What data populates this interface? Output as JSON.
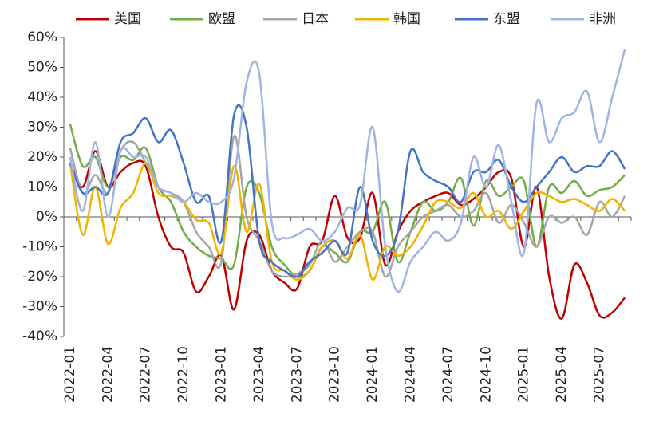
{
  "chart_data": {
    "type": "line",
    "categories": [
      "2022-01",
      null,
      null,
      "2022-04",
      null,
      null,
      "2022-07",
      null,
      null,
      "2022-10",
      null,
      null,
      "2023-01",
      null,
      null,
      "2023-04",
      null,
      null,
      "2023-07",
      null,
      null,
      "2023-10",
      null,
      null,
      "2024-01",
      null,
      null,
      "2024-04",
      null,
      null,
      "2024-07",
      null,
      null,
      "2024-10",
      null,
      null,
      "2025-01",
      null,
      null,
      "2025-04",
      null,
      null,
      "2025-07",
      null,
      null
    ],
    "series": [
      {
        "name": "美国",
        "color": "#c00000",
        "values": [
          18,
          10,
          22,
          10,
          15,
          18,
          17,
          0,
          -10,
          -12,
          -25,
          -20,
          -13,
          -31,
          -8,
          -6,
          -18,
          -22,
          -24,
          -10,
          -8,
          7,
          -7,
          -7,
          8,
          -16,
          -5,
          2,
          5,
          7,
          8,
          4,
          6,
          10,
          15,
          13,
          -10,
          10,
          -20,
          -34,
          -16,
          -22,
          -33,
          -32,
          -27
        ]
      },
      {
        "name": "欧盟",
        "color": "#70ad47",
        "values": [
          31,
          17,
          20,
          10,
          20,
          19,
          23,
          10,
          5,
          -5,
          -10,
          -13,
          -14,
          -16,
          10,
          8,
          -10,
          -16,
          -20,
          -18,
          -10,
          -12,
          -15,
          -5,
          -5,
          5,
          -15,
          -5,
          5,
          2,
          5,
          13,
          -3,
          12,
          7,
          10,
          12,
          -10,
          10,
          8,
          12,
          7,
          9,
          10,
          14
        ]
      },
      {
        "name": "日本",
        "color": "#a5a5a5",
        "values": [
          23,
          8,
          14,
          8,
          22,
          25,
          18,
          10,
          8,
          5,
          -5,
          -10,
          -15,
          27,
          0,
          -8,
          -18,
          -20,
          -19,
          -16,
          -8,
          -15,
          -10,
          -5,
          -5,
          -20,
          -10,
          -5,
          0,
          2,
          4,
          0,
          2,
          8,
          -2,
          4,
          -2,
          -10,
          0,
          -2,
          0,
          -6,
          5,
          0,
          7
        ]
      },
      {
        "name": "韩国",
        "color": "#f0b400",
        "values": [
          18,
          -6,
          10,
          -9,
          3,
          8,
          18,
          8,
          7,
          5,
          -1,
          -2,
          -12,
          17,
          -5,
          11,
          -15,
          -18,
          -21,
          -18,
          -10,
          -8,
          -14,
          -6,
          -21,
          -10,
          -13,
          -10,
          -3,
          5,
          5,
          3,
          8,
          0,
          2,
          -4,
          2,
          8,
          7,
          5,
          6,
          4,
          2,
          6,
          2
        ]
      },
      {
        "name": "东盟",
        "color": "#4472c4",
        "values": [
          18,
          8,
          10,
          8,
          25,
          28,
          33,
          25,
          29,
          18,
          5,
          7,
          -8,
          34,
          30,
          -8,
          -15,
          -18,
          -20,
          -15,
          -12,
          -8,
          -12,
          10,
          -8,
          -13,
          -5,
          22,
          15,
          12,
          10,
          5,
          15,
          15,
          19,
          10,
          5,
          10,
          15,
          20,
          15,
          17,
          17,
          22,
          16
        ]
      },
      {
        "name": "非洲",
        "color": "#9fb4e0",
        "values": [
          20,
          2,
          25,
          0,
          22,
          20,
          20,
          10,
          8,
          5,
          8,
          5,
          5,
          13,
          45,
          48,
          -2,
          -7,
          -6,
          -4,
          -8,
          -5,
          3,
          4,
          30,
          -10,
          -25,
          -15,
          -10,
          -5,
          -8,
          -2,
          20,
          10,
          24,
          5,
          -12,
          38,
          25,
          33,
          35,
          42,
          25,
          40,
          56
        ]
      }
    ],
    "ylim": [
      -40,
      60
    ],
    "yticks": [
      {
        "value": -40,
        "label": "-40%"
      },
      {
        "value": -30,
        "label": "-30%"
      },
      {
        "value": -20,
        "label": "-20%"
      },
      {
        "value": -10,
        "label": "-10%"
      },
      {
        "value": 0,
        "label": "0%"
      },
      {
        "value": 10,
        "label": "10%"
      },
      {
        "value": 20,
        "label": "20%"
      },
      {
        "value": 30,
        "label": "30%"
      },
      {
        "value": 40,
        "label": "40%"
      },
      {
        "value": 50,
        "label": "50%"
      },
      {
        "value": 60,
        "label": "60%"
      }
    ],
    "legend": "top",
    "grid": false
  }
}
